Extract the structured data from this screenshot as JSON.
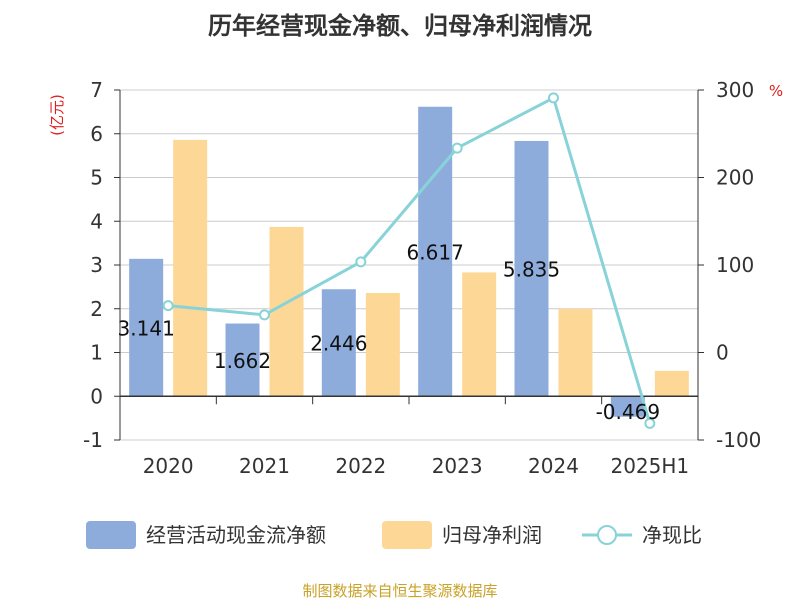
{
  "title": "历年经营现金净额、归母净利润情况",
  "source": "制图数据来自恒生聚源数据库",
  "chart_data": {
    "type": "bar",
    "categories": [
      "2020",
      "2021",
      "2022",
      "2023",
      "2024",
      "2025H1"
    ],
    "series": [
      {
        "name": "经营活动现金流净额",
        "type": "bar",
        "axis": "left",
        "color": "#8eacdb",
        "values": [
          3.141,
          1.662,
          2.446,
          6.617,
          5.835,
          -0.469
        ],
        "labels": [
          "3.141",
          "1.662",
          "2.446",
          "6.617",
          "5.835",
          "-0.469"
        ]
      },
      {
        "name": "归母净利润",
        "type": "bar",
        "axis": "left",
        "color": "#fdd795",
        "values": [
          5.86,
          3.87,
          2.36,
          2.83,
          2.0,
          0.58
        ]
      },
      {
        "name": "净现比",
        "type": "line",
        "axis": "right",
        "color": "#88d3d8",
        "values": [
          53.6,
          43.0,
          103.6,
          233.6,
          291.0,
          -81.0
        ]
      }
    ],
    "y_left": {
      "unit": "(亿元)",
      "min": -1,
      "max": 7,
      "ticks": [
        -1,
        0,
        1,
        2,
        3,
        4,
        5,
        6,
        7
      ]
    },
    "y_right": {
      "unit": "%",
      "min": -100,
      "max": 300,
      "ticks": [
        -100,
        0,
        100,
        200,
        300
      ]
    },
    "grid": true,
    "legend_position": "bottom"
  }
}
